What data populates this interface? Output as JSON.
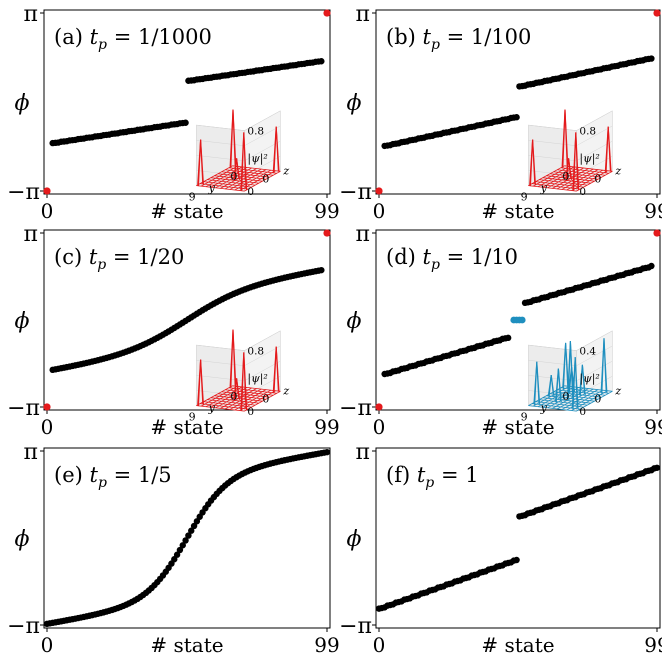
{
  "figure": {
    "y_axis_label": "ϕ",
    "y_tick_top": "π",
    "y_tick_bottom": "−π",
    "x_tick_left": "0",
    "x_tick_right": "99",
    "x_axis_label": "# state",
    "inset_z_label": "|ψ|²",
    "inset_y_label": "y",
    "inset_x_label": "z",
    "inset_tick_9": "9",
    "inset_tick_0": "0",
    "colors": {
      "black": "#000000",
      "red": "#e41a1c",
      "blue": "#1f8fbf"
    }
  },
  "chart_data": [
    {
      "type": "scatter",
      "panel": "(a)",
      "title_prefix": "(a) ",
      "title_var": "t",
      "title_sub": "p",
      "title_value": " = 1/1000",
      "xlim": [
        0,
        99
      ],
      "ylim": [
        -3.1416,
        3.1416
      ],
      "x_ticks": [
        "0",
        "99"
      ],
      "y_ticks": [
        "−π",
        "π"
      ],
      "xlabel": "# state",
      "ylabel": "ϕ",
      "series_red_x": [
        0,
        99
      ],
      "series_red_y": [
        -3.14,
        3.14
      ],
      "black_segments": [
        {
          "x": [
            2,
            49
          ],
          "y": [
            -1.45,
            -0.72
          ]
        },
        {
          "x": [
            50,
            97
          ],
          "y": [
            0.75,
            1.45
          ]
        }
      ],
      "inset": {
        "color": "red",
        "zmax_label": "0.8",
        "zmid_label": "0.4",
        "zmin_label": "0",
        "show_mid": false
      }
    },
    {
      "type": "scatter",
      "panel": "(b)",
      "title_prefix": "(b) ",
      "title_var": "t",
      "title_sub": "p",
      "title_value": " = 1/100",
      "xlim": [
        0,
        99
      ],
      "ylim": [
        -3.1416,
        3.1416
      ],
      "x_ticks": [
        "0",
        "99"
      ],
      "y_ticks": [
        "−π",
        "π"
      ],
      "xlabel": "# state",
      "ylabel": "ϕ",
      "series_red_x": [
        0,
        99
      ],
      "series_red_y": [
        -3.14,
        3.14
      ],
      "black_segments": [
        {
          "x": [
            2,
            49
          ],
          "y": [
            -1.55,
            -0.52
          ]
        },
        {
          "x": [
            50,
            97
          ],
          "y": [
            0.55,
            1.55
          ]
        }
      ],
      "inset": {
        "color": "red",
        "zmax_label": "0.8",
        "zmid_label": "0.4",
        "zmin_label": "0",
        "show_mid": false
      }
    },
    {
      "type": "scatter",
      "panel": "(c)",
      "title_prefix": "(c) ",
      "title_var": "t",
      "title_sub": "p",
      "title_value": " = 1/20",
      "xlim": [
        0,
        99
      ],
      "ylim": [
        -3.1416,
        3.1416
      ],
      "x_ticks": [
        "0",
        "99"
      ],
      "y_ticks": [
        "−π",
        "π"
      ],
      "xlabel": "# state",
      "ylabel": "ϕ",
      "series_red_x": [
        0,
        99
      ],
      "series_red_y": [
        -3.14,
        3.14
      ],
      "black_segments": [
        {
          "x": [
            2,
            97
          ],
          "y": [
            -1.8,
            1.8
          ]
        }
      ],
      "inset": {
        "color": "red",
        "zmax_label": "0.8",
        "zmid_label": "0.4",
        "zmin_label": "0",
        "show_mid": false
      }
    },
    {
      "type": "scatter",
      "panel": "(d)",
      "title_prefix": "(d) ",
      "title_var": "t",
      "title_sub": "p",
      "title_value": " = 1/10",
      "xlim": [
        0,
        99
      ],
      "ylim": [
        -3.1416,
        3.1416
      ],
      "x_ticks": [
        "0",
        "99"
      ],
      "y_ticks": [
        "−π",
        "π"
      ],
      "xlabel": "# state",
      "ylabel": "ϕ",
      "series_red_x": [
        0,
        99
      ],
      "series_red_y": [
        -3.14,
        3.14
      ],
      "series_blue_x": [
        48,
        49,
        50,
        51
      ],
      "series_blue_y": [
        0,
        0,
        0,
        0
      ],
      "black_segments": [
        {
          "x": [
            2,
            46
          ],
          "y": [
            -1.95,
            -0.62
          ]
        },
        {
          "x": [
            52,
            97
          ],
          "y": [
            0.62,
            1.95
          ]
        }
      ],
      "inset": {
        "color": "blue",
        "zmax_label": "0.4",
        "zmid_label": "0.2",
        "zmin_label": "0",
        "show_mid": false
      }
    },
    {
      "type": "scatter",
      "panel": "(e)",
      "title_prefix": "(e) ",
      "title_var": "t",
      "title_sub": "p",
      "title_value": " = 1/5",
      "xlim": [
        0,
        99
      ],
      "ylim": [
        -3.1416,
        3.1416
      ],
      "x_ticks": [
        "0",
        "99"
      ],
      "y_ticks": [
        "−π",
        "π"
      ],
      "xlabel": "# state",
      "ylabel": "ϕ",
      "black_segments": [
        {
          "x": [
            0,
            99
          ],
          "y": [
            -3.1,
            3.1
          ]
        }
      ]
    },
    {
      "type": "scatter",
      "panel": "(f)",
      "title_prefix": "(f) ",
      "title_var": "t",
      "title_sub": "p",
      "title_value": " = 1",
      "xlim": [
        0,
        99
      ],
      "ylim": [
        -3.1416,
        3.1416
      ],
      "x_ticks": [
        "0",
        "99"
      ],
      "y_ticks": [
        "−π",
        "π"
      ],
      "xlabel": "# state",
      "ylabel": "ϕ",
      "black_segments": [
        {
          "x": [
            0,
            49
          ],
          "y": [
            -2.55,
            -0.78
          ]
        },
        {
          "x": [
            50,
            99
          ],
          "y": [
            0.78,
            2.55
          ]
        }
      ]
    }
  ]
}
